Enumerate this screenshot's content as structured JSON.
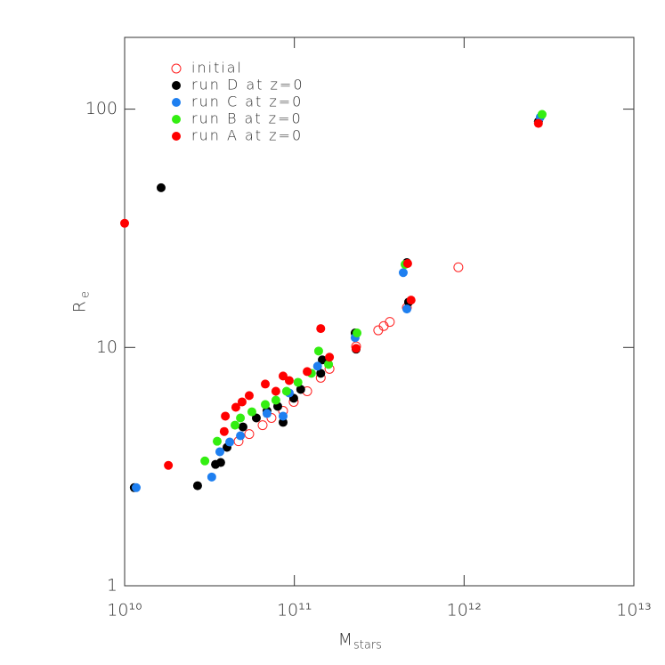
{
  "chart_data": {
    "type": "scatter",
    "xlabel": "M",
    "xlabel_subscript": "stars",
    "ylabel": "R",
    "ylabel_subscript": "e",
    "xscale": "log",
    "yscale": "log",
    "xlim": [
      10000000000,
      10000000000000
    ],
    "ylim": [
      1,
      200
    ],
    "xticks": [
      {
        "value": 10000000000,
        "label": "10¹⁰"
      },
      {
        "value": 100000000000,
        "label": "10¹¹"
      },
      {
        "value": 1000000000000,
        "label": "10¹²"
      },
      {
        "value": 10000000000000,
        "label": "10¹³"
      }
    ],
    "yticks": [
      1,
      10,
      100
    ],
    "legend": "upper left",
    "grid": false,
    "series": [
      {
        "name": "initial",
        "color": "#ff2020",
        "filled": false,
        "x": [
          46900000000,
          54200000000,
          65000000000,
          73300000000,
          85800000000,
          99100000000,
          119000000000,
          143000000000,
          161000000000,
          231000000000,
          312000000000,
          336000000000,
          365000000000,
          460000000000,
          925000000000
        ],
        "values": [
          4.04,
          4.33,
          4.72,
          5.06,
          5.42,
          5.91,
          6.55,
          7.46,
          8.13,
          10.1,
          11.8,
          12.3,
          12.8,
          14.7,
          21.7
        ]
      },
      {
        "name": "run D at z=0",
        "color": "#000000",
        "filled": true,
        "x": [
          16400000000,
          11400000000,
          26900000000,
          34300000000,
          36800000000,
          40100000000,
          49800000000,
          59700000000,
          69000000000,
          79800000000,
          85800000000,
          99100000000,
          109000000000,
          143000000000,
          146000000000,
          228000000000,
          231000000000,
          460000000000,
          471000000000,
          2740000000000
        ],
        "values": [
          46.8,
          2.58,
          2.63,
          3.23,
          3.29,
          3.81,
          4.64,
          5.06,
          5.42,
          5.66,
          4.85,
          6.12,
          6.67,
          7.79,
          8.87,
          11.5,
          9.84,
          22.7,
          15.5,
          88.6
        ]
      },
      {
        "name": "run C at z=0",
        "color": "#1e7ff0",
        "filled": true,
        "x": [
          11700000000,
          32600000000,
          36400000000,
          41600000000,
          48100000000,
          69000000000,
          85800000000,
          93300000000,
          137000000000,
          438000000000,
          460000000000,
          228000000000,
          2810000000000
        ],
        "values": [
          2.58,
          2.86,
          3.65,
          4.01,
          4.26,
          5.28,
          5.15,
          6.44,
          8.34,
          20.6,
          14.5,
          11.0,
          92.5
        ]
      },
      {
        "name": "run B at z=0",
        "color": "#33ee11",
        "filled": true,
        "x": [
          29700000000,
          35100000000,
          44700000000,
          48100000000,
          56200000000,
          67400000000,
          77800000000,
          89900000000,
          105000000000,
          126000000000,
          139000000000,
          159000000000,
          234000000000,
          449000000000,
          2880000000000
        ],
        "values": [
          3.34,
          4.04,
          4.72,
          5.06,
          5.37,
          5.76,
          6.01,
          6.55,
          7.14,
          7.79,
          9.66,
          8.49,
          11.5,
          22.3,
          95.0
        ]
      },
      {
        "name": "run A at z=0",
        "color": "#ff0000",
        "filled": true,
        "x": [
          10000000000,
          18100000000,
          38600000000,
          39200000000,
          45200000000,
          49200000000,
          54200000000,
          67400000000,
          77800000000,
          85800000000,
          93300000000,
          119000000000,
          143000000000,
          161000000000,
          231000000000,
          465000000000,
          487000000000,
          2740000000000
        ],
        "values": [
          33.2,
          3.2,
          4.44,
          5.15,
          5.61,
          5.91,
          6.28,
          7.02,
          6.55,
          7.59,
          7.26,
          7.92,
          12.0,
          9.1,
          9.91,
          22.5,
          15.8,
          87.1
        ]
      }
    ]
  }
}
